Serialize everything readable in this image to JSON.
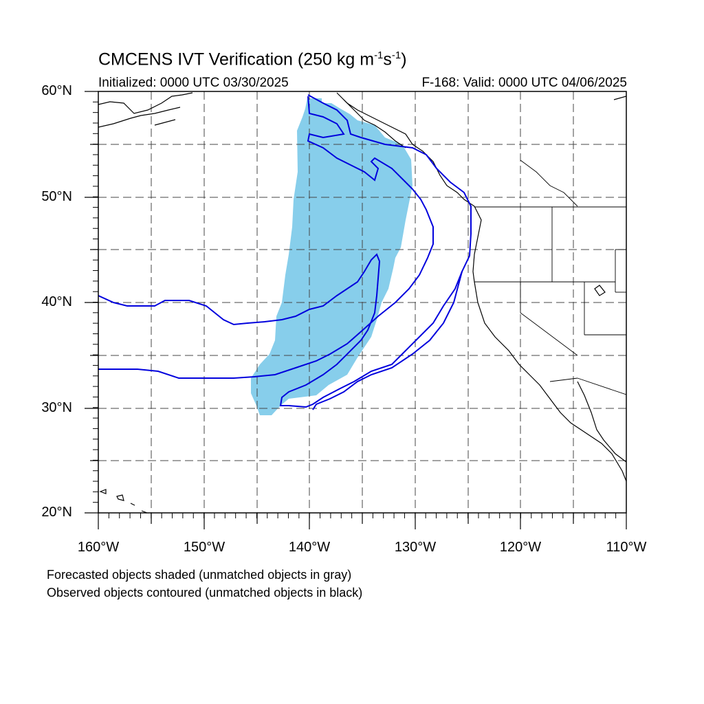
{
  "title": {
    "main": "CMCENS IVT Verification (250 kg m",
    "sup1": "-1",
    "mid": "s",
    "sup2": "-1",
    "end": ")"
  },
  "initialized": "Initialized: 0000 UTC 03/30/2025",
  "valid": "F-168: Valid: 0000 UTC 04/06/2025",
  "lat_labels": [
    "60°N",
    "50°N",
    "40°N",
    "30°N",
    "20°N"
  ],
  "lon_labels": [
    "160°W",
    "150°W",
    "140°W",
    "130°W",
    "120°W",
    "110°W"
  ],
  "footnote_1": "Forecasted objects shaded (unmatched objects in gray)",
  "footnote_2": "Observed objects contoured (unmatched objects in black)",
  "colors": {
    "forecast_fill": "#87CEEB",
    "observed_contour": "#0000DD",
    "coastline": "#000000",
    "grid": "#444444"
  }
}
